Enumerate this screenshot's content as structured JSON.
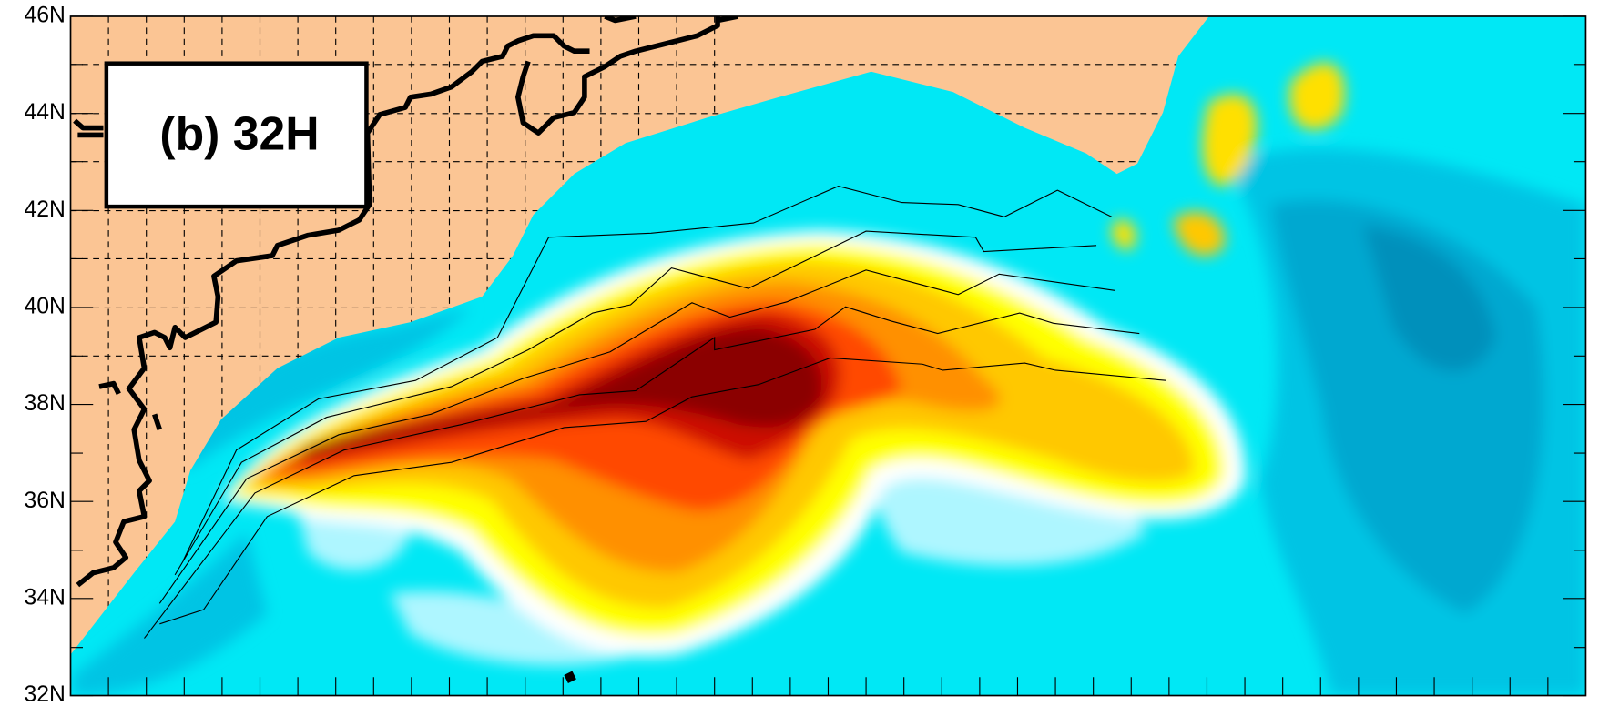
{
  "panel_label": "(b) 32H",
  "axis": {
    "ylim": [
      32,
      46
    ],
    "yticks": [
      {
        "value": 46,
        "label": "46N"
      },
      {
        "value": 44,
        "label": "44N"
      },
      {
        "value": 42,
        "label": "42N"
      },
      {
        "value": 40,
        "label": "40N"
      },
      {
        "value": 38,
        "label": "38N"
      },
      {
        "value": 36,
        "label": "36N"
      },
      {
        "value": 34,
        "label": "34N"
      },
      {
        "value": 32,
        "label": "32N"
      }
    ]
  }
}
